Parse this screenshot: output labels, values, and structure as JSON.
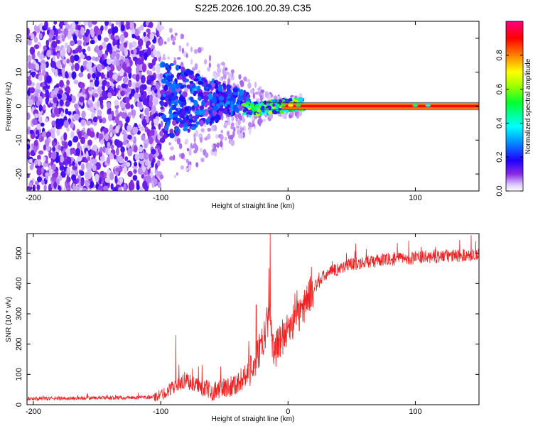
{
  "chart_data": [
    {
      "type": "heatmap",
      "title": "S225.2026.100.20.39.C35",
      "xlabel": "Height of straight line (km)",
      "ylabel": "Frequency (Hz)",
      "xlim": [
        -205,
        150
      ],
      "ylim": [
        -25,
        25
      ],
      "xticks": [
        -200,
        -100,
        0,
        100
      ],
      "yticks": [
        -20,
        -10,
        0,
        10,
        20
      ],
      "colorbar": {
        "label": "Normalized spectral amplitude",
        "range": [
          0,
          1
        ],
        "ticks": [
          "0.0",
          "0.2",
          "0.4",
          "0.6",
          "0.8"
        ],
        "colors": [
          "#ffffff",
          "#d9c4ff",
          "#7f00ff",
          "#0000ff",
          "#00ffff",
          "#00ff00",
          "#ffff00",
          "#ff8000",
          "#ff0000",
          "#ff0080"
        ]
      },
      "description_regions": [
        {
          "x_range": [
            -205,
            -100
          ],
          "pattern": "scattered noise, all frequencies, amplitude 0.05-0.25"
        },
        {
          "x_range": [
            -100,
            -30
          ],
          "pattern": "energy converging toward 0 Hz, amplitude up to 0.35"
        },
        {
          "x_range": [
            -30,
            10
          ],
          "pattern": "narrow band near 0 Hz, amplitude 0.3-0.8"
        },
        {
          "x_range": [
            10,
            150
          ],
          "pattern": "carrier line at 0 Hz, amplitude ~0.9"
        }
      ]
    },
    {
      "type": "line",
      "title": "",
      "xlabel": "Height of straight line (km)",
      "ylabel": "SNR (10 * v/v)",
      "xlim": [
        -205,
        150
      ],
      "ylim": [
        0,
        565
      ],
      "xticks": [
        -200,
        -100,
        0,
        100
      ],
      "yticks": [
        0,
        100,
        200,
        300,
        400,
        500
      ],
      "color": "#ee2222",
      "series": [
        {
          "name": "SNR",
          "x": [
            -205,
            -150,
            -110,
            -100,
            -90,
            -80,
            -70,
            -60,
            -50,
            -40,
            -35,
            -30,
            -25,
            -20,
            -17,
            -15,
            -12,
            -10,
            -5,
            0,
            5,
            10,
            15,
            20,
            25,
            30,
            40,
            50,
            60,
            80,
            100,
            120,
            150
          ],
          "values": [
            20,
            22,
            24,
            30,
            60,
            80,
            60,
            45,
            55,
            70,
            90,
            120,
            150,
            200,
            260,
            300,
            200,
            180,
            220,
            250,
            280,
            300,
            350,
            380,
            410,
            430,
            450,
            465,
            470,
            480,
            485,
            490,
            495
          ]
        }
      ],
      "spikes": [
        {
          "x": -14,
          "value": 565
        },
        {
          "x": -15,
          "value": 450
        },
        {
          "x": -88,
          "value": 230
        },
        {
          "x": -25,
          "value": 330
        }
      ]
    }
  ]
}
